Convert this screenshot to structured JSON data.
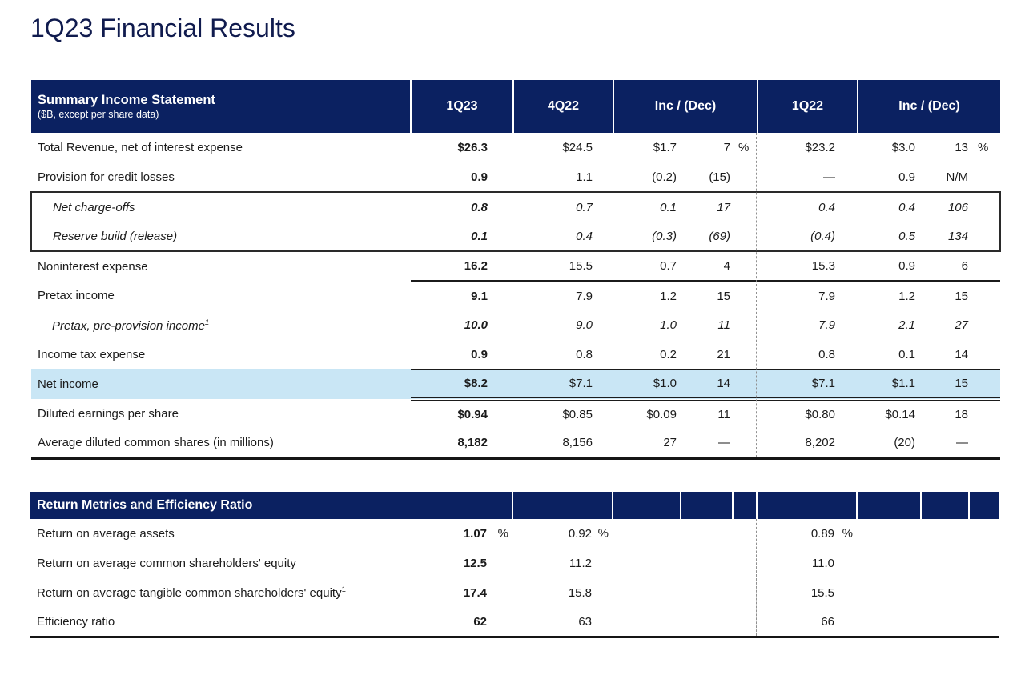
{
  "page": {
    "title": "1Q23 Financial Results"
  },
  "colors": {
    "navy": "#0B2161",
    "highlight_row": "#C9E6F5",
    "title": "#101B4E",
    "divider": "#909090"
  },
  "income_statement": {
    "title": "Summary Income Statement",
    "subtitle": "($B, except per share data)",
    "col_headers": [
      "1Q23",
      "4Q22",
      "Inc / (Dec)",
      "1Q22",
      "Inc / (Dec)"
    ],
    "rows": [
      {
        "label": "Total Revenue, net of interest expense",
        "values": [
          "$26.3",
          "$24.5",
          "$1.7",
          "7",
          "%",
          "$23.2",
          "$3.0",
          "13",
          "%"
        ]
      },
      {
        "label": "Provision for credit losses",
        "values": [
          "0.9",
          "1.1",
          "(0.2)",
          "(15)",
          "",
          "—",
          "0.9",
          "N/M",
          ""
        ]
      },
      {
        "label": "Net charge-offs",
        "indent": true,
        "italic": true,
        "box": "top",
        "values": [
          "0.8",
          "0.7",
          "0.1",
          "17",
          "",
          "0.4",
          "0.4",
          "106",
          ""
        ]
      },
      {
        "label": "Reserve build (release)",
        "indent": true,
        "italic": true,
        "box": "bottom",
        "values": [
          "0.1",
          "0.4",
          "(0.3)",
          "(69)",
          "",
          "(0.4)",
          "0.5",
          "134",
          ""
        ]
      },
      {
        "label": "Noninterest expense",
        "values": [
          "16.2",
          "15.5",
          "0.7",
          "4",
          "",
          "15.3",
          "0.9",
          "6",
          ""
        ]
      },
      {
        "label": "Pretax income",
        "rule_top": true,
        "values": [
          "9.1",
          "7.9",
          "1.2",
          "15",
          "",
          "7.9",
          "1.2",
          "15",
          ""
        ]
      },
      {
        "label": "Pretax, pre-provision income",
        "sup": "1",
        "indent": true,
        "italic": true,
        "values": [
          "10.0",
          "9.0",
          "1.0",
          "11",
          "",
          "7.9",
          "2.1",
          "27",
          ""
        ]
      },
      {
        "label": "Income tax expense",
        "values": [
          "0.9",
          "0.8",
          "0.2",
          "21",
          "",
          "0.8",
          "0.1",
          "14",
          ""
        ]
      },
      {
        "label": "Net income",
        "highlight": true,
        "values": [
          "$8.2",
          "$7.1",
          "$1.0",
          "14",
          "",
          "$7.1",
          "$1.1",
          "15",
          ""
        ]
      },
      {
        "label": "Diluted earnings per share",
        "values": [
          "$0.94",
          "$0.85",
          "$0.09",
          "11",
          "",
          "$0.80",
          "$0.14",
          "18",
          ""
        ]
      },
      {
        "label": "Average diluted common shares (in millions)",
        "thick_bottom": true,
        "values": [
          "8,182",
          "8,156",
          "27",
          "—",
          "",
          "8,202",
          "(20)",
          "—",
          ""
        ]
      }
    ]
  },
  "return_metrics": {
    "title": "Return Metrics and Efficiency Ratio",
    "rows": [
      {
        "label": "Return on average assets",
        "sym": "%",
        "values": [
          "1.07",
          "0.92",
          "0.89"
        ]
      },
      {
        "label": "Return on average common shareholders' equity",
        "values": [
          "12.5",
          "11.2",
          "11.0"
        ]
      },
      {
        "label": "Return on average tangible common shareholders' equity",
        "sup": "1",
        "values": [
          "17.4",
          "15.8",
          "15.5"
        ]
      },
      {
        "label": "Efficiency ratio",
        "thick_bottom": true,
        "values": [
          "62",
          "63",
          "66"
        ]
      }
    ]
  }
}
